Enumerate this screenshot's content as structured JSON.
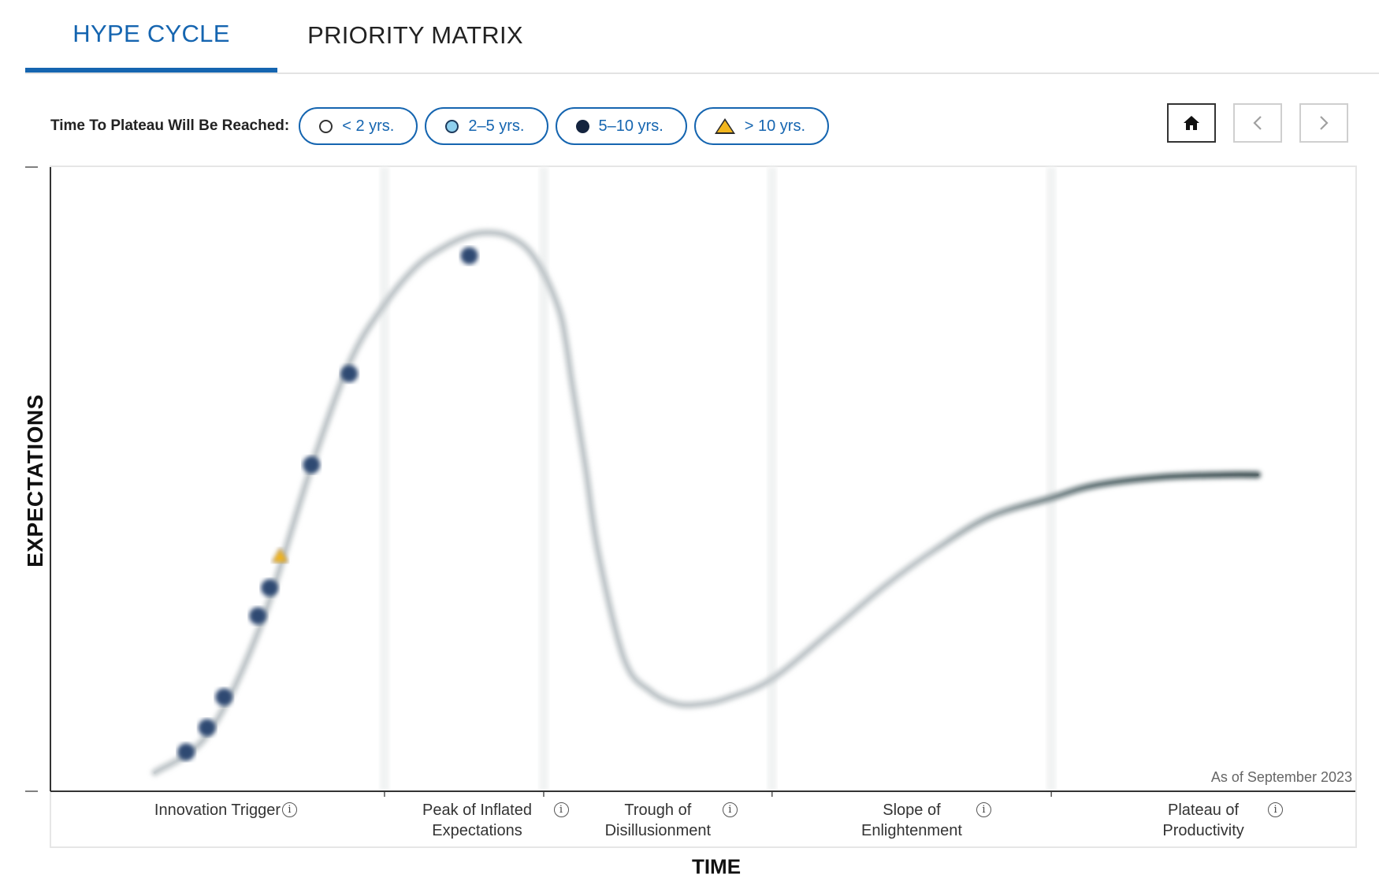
{
  "tabs": [
    {
      "label": "HYPE CYCLE",
      "active": true
    },
    {
      "label": "PRIORITY MATRIX",
      "active": false
    }
  ],
  "legend": {
    "title": "Time To Plateau Will Be Reached:",
    "items": [
      {
        "label": "< 2 yrs.",
        "marker": "open-circle"
      },
      {
        "label": "2–5 yrs.",
        "marker": "light-blue-circle"
      },
      {
        "label": "5–10 yrs.",
        "marker": "dark-navy-circle"
      },
      {
        "label": "> 10 yrs.",
        "marker": "yellow-triangle"
      }
    ]
  },
  "nav": {
    "home_icon": "home-icon",
    "prev_icon": "chevron-left-icon",
    "next_icon": "chevron-right-icon"
  },
  "chart_data": {
    "type": "line",
    "subtitle": "As of September 2023",
    "xlabel": "TIME",
    "ylabel": "EXPECTATIONS",
    "phases": [
      {
        "name": "Innovation Trigger"
      },
      {
        "name": "Peak of Inflated Expectations"
      },
      {
        "name": "Trough of Disillusionment"
      },
      {
        "name": "Slope of Enlightenment"
      },
      {
        "name": "Plateau of Productivity"
      }
    ],
    "phase_boundaries": [
      0.256,
      0.378,
      0.553,
      0.767
    ],
    "curve": {
      "x": [
        0.08,
        0.12,
        0.16,
        0.2,
        0.23,
        0.256,
        0.28,
        0.3,
        0.32,
        0.335,
        0.35,
        0.365,
        0.378,
        0.39,
        0.395,
        0.4,
        0.41,
        0.42,
        0.44,
        0.46,
        0.48,
        0.5,
        0.52,
        0.553,
        0.6,
        0.64,
        0.68,
        0.72,
        0.767,
        0.8,
        0.85,
        0.9,
        0.925
      ],
      "y": [
        0.03,
        0.09,
        0.26,
        0.52,
        0.69,
        0.78,
        0.84,
        0.87,
        0.89,
        0.895,
        0.89,
        0.87,
        0.83,
        0.77,
        0.72,
        0.65,
        0.52,
        0.38,
        0.21,
        0.16,
        0.14,
        0.14,
        0.15,
        0.18,
        0.26,
        0.33,
        0.39,
        0.44,
        0.47,
        0.49,
        0.503,
        0.507,
        0.507
      ]
    },
    "markers": [
      {
        "x": 0.104,
        "y": 0.063,
        "category": "5–10 yrs."
      },
      {
        "x": 0.12,
        "y": 0.102,
        "category": "5–10 yrs."
      },
      {
        "x": 0.133,
        "y": 0.151,
        "category": "5–10 yrs."
      },
      {
        "x": 0.159,
        "y": 0.281,
        "category": "5–10 yrs."
      },
      {
        "x": 0.168,
        "y": 0.326,
        "category": "5–10 yrs."
      },
      {
        "x": 0.176,
        "y": 0.377,
        "category": "> 10 yrs."
      },
      {
        "x": 0.2,
        "y": 0.523,
        "category": "5–10 yrs."
      },
      {
        "x": 0.229,
        "y": 0.669,
        "category": "5–10 yrs."
      },
      {
        "x": 0.321,
        "y": 0.858,
        "category": "5–10 yrs."
      }
    ]
  }
}
